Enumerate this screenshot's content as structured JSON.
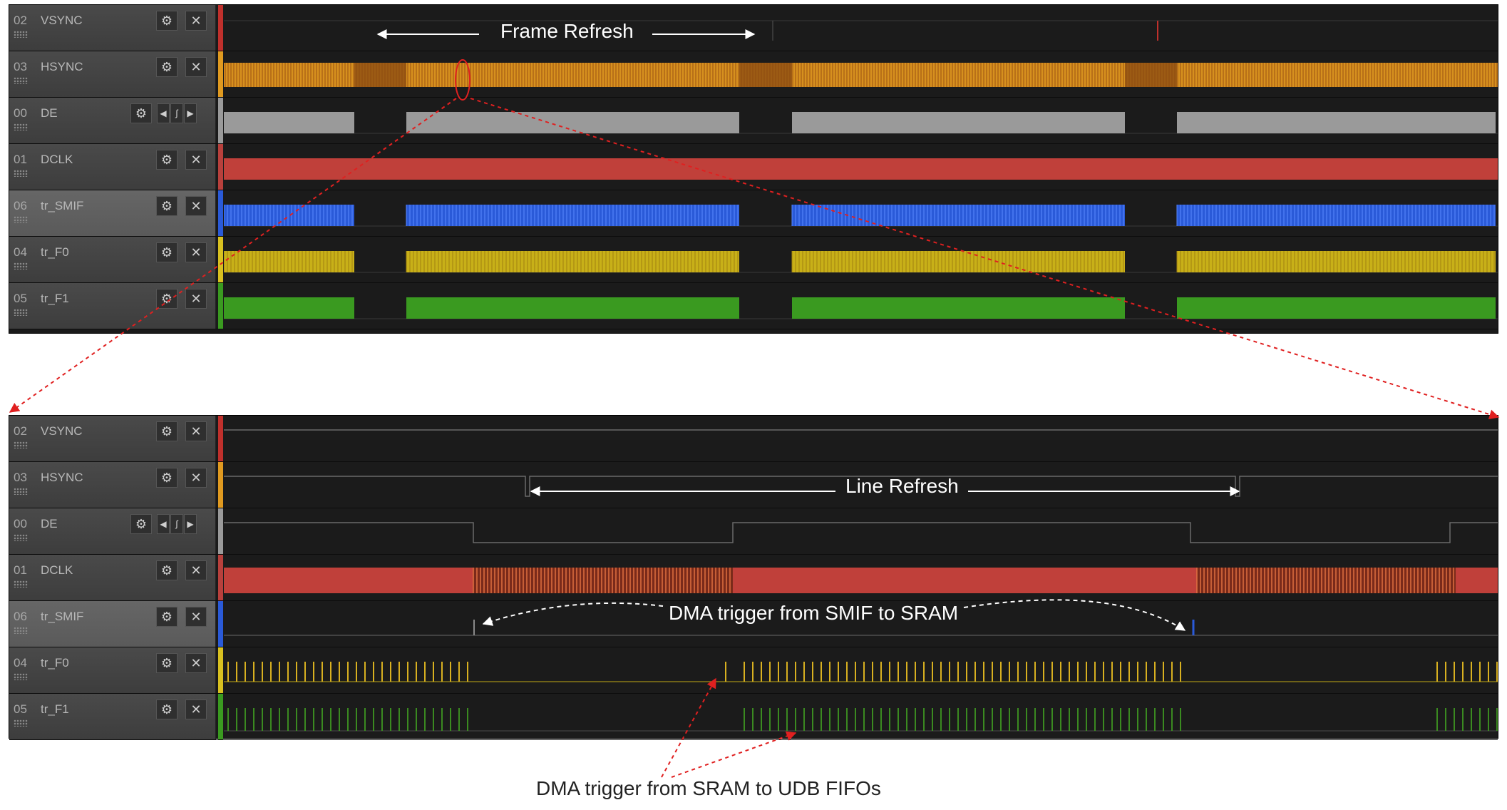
{
  "top_panel": {
    "channels": [
      {
        "num": "02",
        "name": "VSYNC",
        "color": "#c0302c"
      },
      {
        "num": "03",
        "name": "HSYNC",
        "color": "#e09a20"
      },
      {
        "num": "00",
        "name": "DE",
        "color": "#9a9a9a"
      },
      {
        "num": "01",
        "name": "DCLK",
        "color": "#b8403c"
      },
      {
        "num": "06",
        "name": "tr_SMIF",
        "color": "#2a5ad8"
      },
      {
        "num": "04",
        "name": "tr_F0",
        "color": "#d8c020"
      },
      {
        "num": "05",
        "name": "tr_F1",
        "color": "#3a9a20"
      }
    ],
    "annotation": "Frame Refresh"
  },
  "bottom_panel": {
    "channels": [
      {
        "num": "02",
        "name": "VSYNC",
        "color": "#c0302c"
      },
      {
        "num": "03",
        "name": "HSYNC",
        "color": "#e09a20"
      },
      {
        "num": "00",
        "name": "DE",
        "color": "#9a9a9a"
      },
      {
        "num": "01",
        "name": "DCLK",
        "color": "#b8403c"
      },
      {
        "num": "06",
        "name": "tr_SMIF",
        "color": "#2a5ad8"
      },
      {
        "num": "04",
        "name": "tr_F0",
        "color": "#d8c020"
      },
      {
        "num": "05",
        "name": "tr_F1",
        "color": "#3a9a20"
      }
    ],
    "annotation_line": "Line Refresh",
    "annotation_dma_smif": "DMA trigger from SMIF to SRAM"
  },
  "caption": "DMA trigger from SRAM to UDB FIFOs",
  "icons": {
    "settings": "gear-icon",
    "close": "close-icon",
    "prev": "chevron-left-icon",
    "edge": "edge-trigger-icon",
    "next": "chevron-right-icon"
  }
}
